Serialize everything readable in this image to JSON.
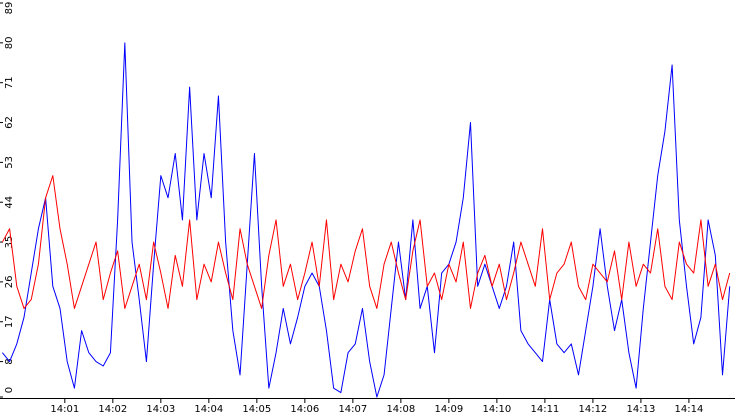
{
  "chart_data": {
    "type": "line",
    "x": [
      -0.3,
      -0.15,
      0,
      0.15,
      0.3,
      0.45,
      0.6,
      0.75,
      0.9,
      1.05,
      1.2,
      1.35,
      1.5,
      1.65,
      1.8,
      1.95,
      2.1,
      2.25,
      2.4,
      2.55,
      2.7,
      2.85,
      3,
      3.15,
      3.3,
      3.45,
      3.6,
      3.75,
      3.9,
      4.05,
      4.2,
      4.35,
      4.5,
      4.65,
      4.8,
      4.95,
      5.1,
      5.25,
      5.4,
      5.55,
      5.7,
      5.85,
      6,
      6.15,
      6.3,
      6.45,
      6.6,
      6.75,
      6.9,
      7.05,
      7.2,
      7.35,
      7.5,
      7.65,
      7.8,
      7.95,
      8.1,
      8.25,
      8.4,
      8.55,
      8.7,
      8.85,
      9,
      9.15,
      9.3,
      9.45,
      9.6,
      9.75,
      9.9,
      10.05,
      10.2,
      10.35,
      10.5,
      10.65,
      10.8,
      10.95,
      11.1,
      11.25,
      11.4,
      11.55,
      11.7,
      11.85,
      12,
      12.15,
      12.3,
      12.45,
      12.6,
      12.75,
      12.9,
      13.05,
      13.2,
      13.35,
      13.5,
      13.65,
      13.8,
      13.95,
      14.1,
      14.25,
      14.4,
      14.55,
      14.7,
      14.85
    ],
    "series": [
      {
        "color": "#0000ff",
        "values": [
          10,
          8,
          12,
          18,
          28,
          38,
          45,
          25,
          20,
          8,
          2,
          15,
          10,
          8,
          7,
          10,
          40,
          80,
          35,
          22,
          8,
          30,
          50,
          45,
          55,
          40,
          70,
          40,
          55,
          45,
          68,
          35,
          15,
          5,
          30,
          55,
          25,
          2,
          10,
          20,
          12,
          18,
          25,
          28,
          25,
          15,
          2,
          1,
          10,
          12,
          20,
          8,
          0,
          5,
          20,
          35,
          22,
          40,
          20,
          25,
          10,
          28,
          30,
          35,
          45,
          62,
          25,
          30,
          25,
          20,
          25,
          35,
          15,
          12,
          10,
          8,
          22,
          12,
          10,
          12,
          5,
          15,
          25,
          38,
          25,
          15,
          22,
          10,
          2,
          20,
          35,
          50,
          60,
          75,
          40,
          25,
          12,
          18,
          40,
          32,
          5,
          25
        ]
      },
      {
        "color": "#ff0000",
        "values": [
          35,
          38,
          25,
          20,
          22,
          30,
          45,
          50,
          38,
          30,
          20,
          25,
          30,
          35,
          22,
          28,
          33,
          20,
          25,
          30,
          22,
          35,
          28,
          20,
          32,
          25,
          40,
          22,
          30,
          26,
          35,
          28,
          22,
          38,
          30,
          25,
          20,
          32,
          40,
          25,
          30,
          22,
          28,
          35,
          25,
          40,
          22,
          30,
          26,
          33,
          38,
          25,
          20,
          30,
          35,
          28,
          22,
          33,
          40,
          25,
          28,
          22,
          30,
          26,
          35,
          20,
          28,
          32,
          25,
          30,
          22,
          28,
          35,
          30,
          25,
          38,
          22,
          28,
          30,
          35,
          25,
          22,
          30,
          28,
          26,
          33,
          22,
          35,
          25,
          30,
          28,
          38,
          25,
          22,
          35,
          30,
          28,
          40,
          25,
          30,
          22,
          28
        ]
      }
    ],
    "xlim": [
      -0.35,
      14.96
    ],
    "xticks": [
      {
        "value": 1,
        "label": "14:01"
      },
      {
        "value": 2,
        "label": "14:02"
      },
      {
        "value": 3,
        "label": "14:03"
      },
      {
        "value": 4,
        "label": "14:04"
      },
      {
        "value": 5,
        "label": "14:05"
      },
      {
        "value": 6,
        "label": "14:06"
      },
      {
        "value": 7,
        "label": "14:07"
      },
      {
        "value": 8,
        "label": "14:08"
      },
      {
        "value": 9,
        "label": "14:09"
      },
      {
        "value": 10,
        "label": "14:10"
      },
      {
        "value": 11,
        "label": "14:11"
      },
      {
        "value": 12,
        "label": "14:12"
      },
      {
        "value": 13,
        "label": "14:13"
      },
      {
        "value": 14,
        "label": "14:14"
      }
    ],
    "ylim": [
      0,
      89
    ],
    "yticks": [
      0,
      8,
      17,
      26,
      35,
      44,
      53,
      62,
      71,
      80,
      89
    ]
  }
}
